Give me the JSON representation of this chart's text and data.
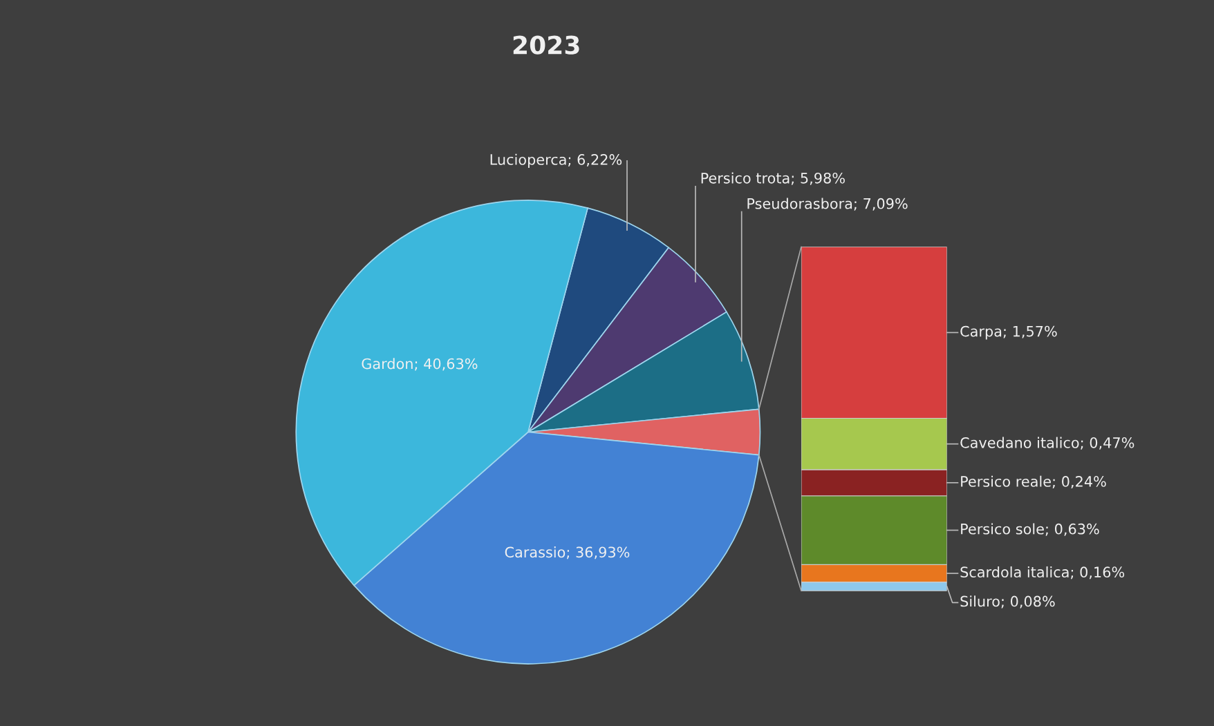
{
  "chart_data": [
    {
      "type": "pie",
      "title": "2023",
      "categories": [
        "Lucioperca; 6,22%",
        "Persico trota; 5,98%",
        "Pseudorasbora; 7,09%",
        null,
        "Carassio; 36,93%",
        "Gardon; 40,63%"
      ],
      "values": [
        6.22,
        5.98,
        7.09,
        3.15,
        36.93,
        40.63
      ],
      "colors": [
        "#1f4a7e",
        "#4e3a70",
        "#1c6e86",
        "#e06262",
        "#4382d4",
        "#3cb7dc"
      ]
    },
    {
      "type": "bar",
      "stacked": true,
      "categories": [
        null
      ],
      "series": [
        {
          "color": "#8ec8ec",
          "values": [
            0.08
          ],
          "value_labels": [
            "Siluro; 0,08%"
          ]
        },
        {
          "color": "#e8761e",
          "values": [
            0.16
          ],
          "value_labels": [
            "Scardola italica; 0,16%"
          ]
        },
        {
          "color": "#5e8a2a",
          "values": [
            0.63
          ],
          "value_labels": [
            "Persico sole; 0,63%"
          ]
        },
        {
          "color": "#8a2222",
          "values": [
            0.24
          ],
          "value_labels": [
            "Persico reale; 0,24%"
          ]
        },
        {
          "color": "#a6c84e",
          "values": [
            0.47
          ],
          "value_labels": [
            "Cavedano italico; 0,47%"
          ]
        },
        {
          "color": "#d63e3e",
          "values": [
            1.57
          ],
          "value_labels": [
            "Carpa; 1,57%"
          ]
        }
      ]
    }
  ]
}
